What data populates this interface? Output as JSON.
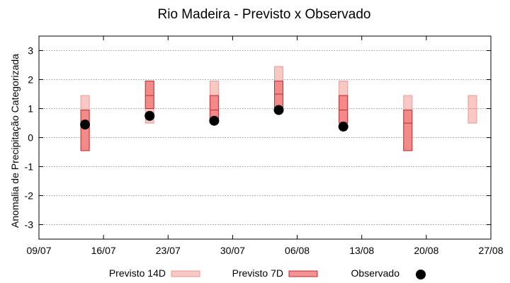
{
  "chart_data": {
    "type": "floating-bar-range",
    "title": "Rio Madeira - Previsto x Observado",
    "ylabel": "Anomalia de Precipitação Categorizada",
    "xlabel": "",
    "ylim": [
      -3.5,
      3.5
    ],
    "yticks": [
      -3,
      -2,
      -1,
      0,
      1,
      2,
      3
    ],
    "x_tick_labels": [
      "09/07",
      "16/07",
      "23/07",
      "30/07",
      "06/08",
      "13/08",
      "20/08",
      "27/08"
    ],
    "x_tick_values": [
      0,
      7,
      14,
      21,
      28,
      35,
      42,
      49
    ],
    "grid": "horizontal dotted",
    "legend_position": "bottom",
    "series": [
      {
        "name": "Previsto 14D",
        "kind": "range",
        "color": "#f4b6b0",
        "points": [
          {
            "x": 5,
            "low": -0.45,
            "high": 1.45,
            "median": 0.5
          },
          {
            "x": 12,
            "low": 0.5,
            "high": 1.95,
            "median": 1.45
          },
          {
            "x": 19,
            "low": 0.55,
            "high": 1.95,
            "median": 1.45
          },
          {
            "x": 26,
            "low": 1.0,
            "high": 2.45,
            "median": 1.5
          },
          {
            "x": 33,
            "low": 0.5,
            "high": 1.95,
            "median": 1.45
          },
          {
            "x": 40,
            "low": -0.45,
            "high": 1.45,
            "median": 0.5
          },
          {
            "x": 47,
            "low": 0.5,
            "high": 1.45,
            "median": 1.0
          }
        ]
      },
      {
        "name": "Previsto 7D",
        "kind": "range",
        "color": "#f07f7f",
        "points": [
          {
            "x": 5,
            "low": -0.45,
            "high": 0.95,
            "median": 0.45
          },
          {
            "x": 12,
            "low": 1.0,
            "high": 1.95,
            "median": 1.45
          },
          {
            "x": 19,
            "low": 0.55,
            "high": 1.45,
            "median": 0.95
          },
          {
            "x": 26,
            "low": 1.0,
            "high": 1.95,
            "median": 1.5
          },
          {
            "x": 33,
            "low": 0.5,
            "high": 1.45,
            "median": 0.95
          },
          {
            "x": 40,
            "low": -0.45,
            "high": 0.95,
            "median": 0.5
          }
        ]
      },
      {
        "name": "Observado",
        "kind": "scatter",
        "color": "#000000",
        "points": [
          {
            "x": 5,
            "y": 0.45
          },
          {
            "x": 12,
            "y": 0.75
          },
          {
            "x": 19,
            "y": 0.58
          },
          {
            "x": 26,
            "y": 0.95
          },
          {
            "x": 33,
            "y": 0.38
          }
        ]
      }
    ]
  }
}
